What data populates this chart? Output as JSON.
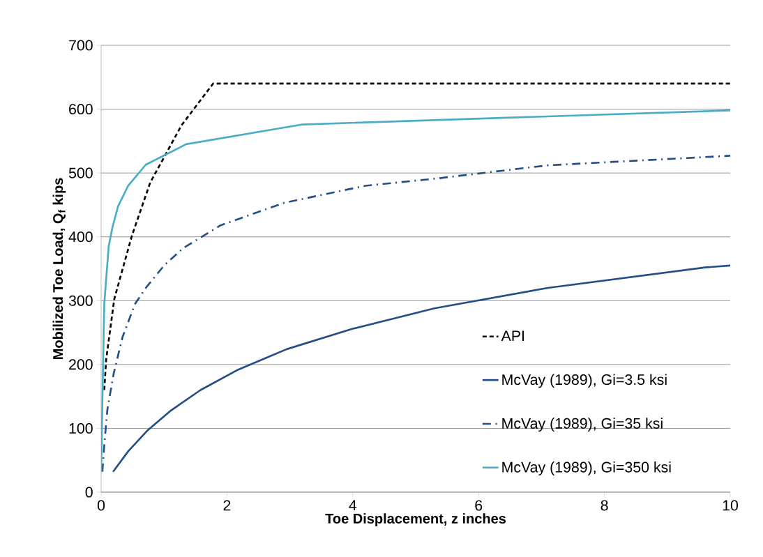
{
  "chart_data": {
    "type": "line",
    "xlabel": "Toe Displacement, z inches",
    "ylabel": "Mobilized Toe Load, Q$_{f}$  kips",
    "xlim": [
      0,
      10
    ],
    "ylim": [
      0,
      700
    ],
    "xticks": [
      0,
      2,
      4,
      6,
      8,
      10
    ],
    "yticks": [
      0,
      100,
      200,
      300,
      400,
      500,
      600,
      700
    ],
    "grid": "y",
    "legend": "bottom right",
    "marker": "none",
    "series": [
      {
        "name": "API",
        "color": "#000000",
        "line_style": "dashed",
        "x": [
          0.05,
          0.08,
          0.21,
          0.49,
          0.78,
          1.28,
          1.78,
          10
        ],
        "values": [
          160,
          208,
          303,
          402,
          485,
          575,
          640,
          640
        ]
      },
      {
        "name": "McVay (1989), Gi=3.5 ksi",
        "color": "#254f84",
        "line_style": "solid",
        "x": [
          0.19,
          0.43,
          0.73,
          1.11,
          1.58,
          2.18,
          2.95,
          4.0,
          5.3,
          7.1,
          9.6,
          10
        ],
        "values": [
          32,
          64,
          96,
          128,
          160,
          192,
          224,
          256,
          288,
          320,
          352,
          355
        ]
      },
      {
        "name": "McVay (1989), Gi=35 ksi",
        "color": "#254f84",
        "line_style": "dashdot",
        "x": [
          0.02,
          0.05,
          0.1,
          0.2,
          0.34,
          0.54,
          0.71,
          1.0,
          1.3,
          1.9,
          2.9,
          4.2,
          5.3,
          7.1,
          10
        ],
        "values": [
          32,
          74,
          130,
          186,
          243,
          295,
          320,
          355,
          382,
          418,
          453,
          480,
          491,
          512,
          527
        ]
      },
      {
        "name": "McVay (1989), Gi=350 ksi",
        "color": "#4bacc6",
        "line_style": "solid",
        "x": [
          0,
          0.02,
          0.05,
          0.12,
          0.18,
          0.27,
          0.43,
          0.71,
          1.35,
          3.2,
          10
        ],
        "values": [
          32,
          143,
          295,
          385,
          415,
          448,
          480,
          513,
          545,
          576,
          598
        ]
      }
    ]
  }
}
